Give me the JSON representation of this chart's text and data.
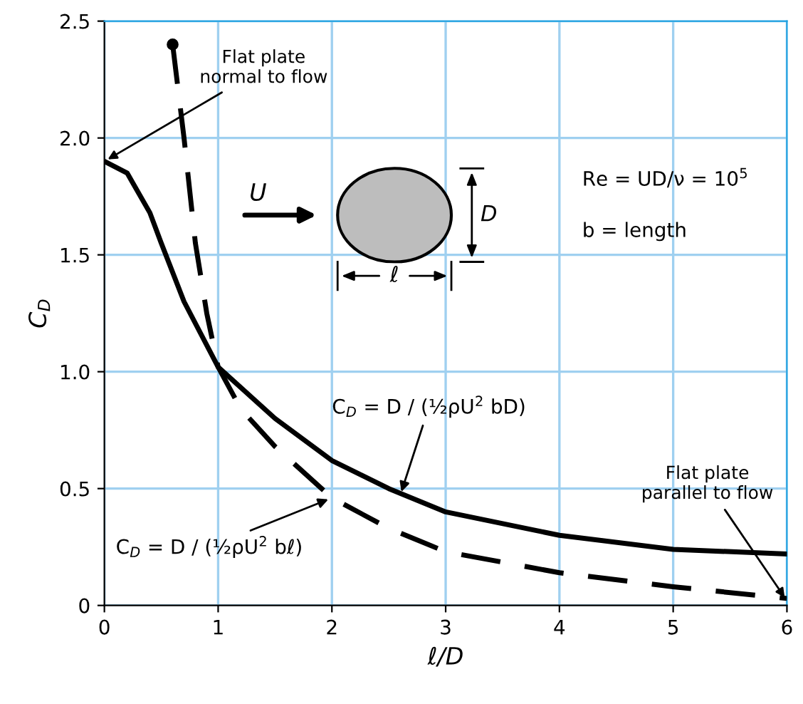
{
  "chart_data": {
    "type": "line",
    "xlabel": "ℓ/D",
    "ylabel": "C$_{D}$",
    "xlim": [
      0,
      6
    ],
    "ylim": [
      0,
      2.5
    ],
    "xticks": [
      0,
      1,
      2,
      3,
      4,
      5,
      6
    ],
    "yticks": [
      0,
      {
        "value": 0.5,
        "label": "0.5"
      },
      {
        "value": 1.0,
        "label": "1.0"
      },
      {
        "value": 1.5,
        "label": "1.5"
      },
      {
        "value": 2.0,
        "label": "2.0"
      },
      {
        "value": 2.5,
        "label": "2.5"
      }
    ],
    "grid": true,
    "series": [
      {
        "color": "#000000",
        "line_style": "solid",
        "x": [
          0,
          0.2,
          0.4,
          0.5,
          0.7,
          1.0,
          1.5,
          2.0,
          2.5,
          3.0,
          4.0,
          5.0,
          6.0
        ],
        "values": [
          1.9,
          1.85,
          1.68,
          1.55,
          1.3,
          1.02,
          0.8,
          0.62,
          0.5,
          0.4,
          0.3,
          0.24,
          0.22
        ]
      },
      {
        "color": "#000000",
        "line_style": "dashed",
        "x": [
          0.6,
          0.7,
          0.8,
          0.9,
          1.0,
          1.2,
          1.5,
          2.0,
          2.5,
          3.0,
          4.0,
          5.0,
          6.0
        ],
        "values": [
          2.4,
          2.0,
          1.55,
          1.25,
          1.02,
          0.84,
          0.68,
          0.46,
          0.33,
          0.23,
          0.14,
          0.08,
          0.03
        ]
      },
      {
        "type": "scatter",
        "color": "#000000",
        "marker": "circle",
        "x": [
          0.6
        ],
        "values": [
          2.4
        ]
      }
    ],
    "annotations": [
      {
        "text": "Flat plate\nnormal to flow",
        "x": 0,
        "y": 1.9
      },
      {
        "text": "Flat plate\nparallel to flow",
        "x": 6,
        "y": 0.02
      },
      {
        "text": "C$_{D}$ = D / (½ρU$^{2}$ bD)",
        "x": 2.6,
        "y": 0.47
      },
      {
        "text": "C$_{D}$ = D / (½ρU$^{2}$ bℓ)",
        "x": 2.0,
        "y": 0.46
      },
      "Re = UD/ν = 10$^{5}$",
      "b = length",
      "U",
      "D",
      "ℓ"
    ]
  }
}
